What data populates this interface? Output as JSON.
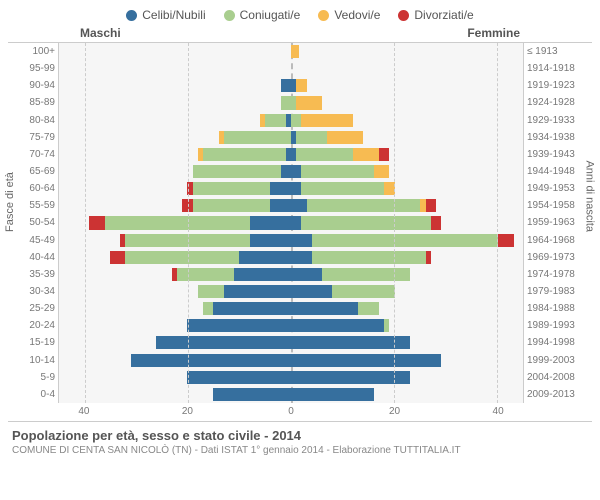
{
  "legend": [
    {
      "label": "Celibi/Nubili",
      "color": "#366f9e"
    },
    {
      "label": "Coniugati/e",
      "color": "#a9ce8f"
    },
    {
      "label": "Vedovi/e",
      "color": "#f7bb52"
    },
    {
      "label": "Divorziati/e",
      "color": "#cc3333"
    }
  ],
  "header": {
    "male": "Maschi",
    "female": "Femmine"
  },
  "axis": {
    "left_title": "Fasce di età",
    "right_title": "Anni di nascita",
    "max": 45,
    "ticks": [
      40,
      20,
      0,
      20,
      40
    ],
    "grid": [
      40,
      20,
      20,
      40
    ]
  },
  "colors": {
    "single": "#366f9e",
    "married": "#a9ce8f",
    "widowed": "#f7bb52",
    "divorced": "#cc3333",
    "plot_bg": "#f6f6f6",
    "grid": "#cccccc"
  },
  "rows": [
    {
      "age": "100+",
      "birth": "≤ 1913",
      "m": [
        0,
        0,
        0,
        0
      ],
      "f": [
        0,
        0,
        1.5,
        0
      ]
    },
    {
      "age": "95-99",
      "birth": "1914-1918",
      "m": [
        0,
        0,
        0,
        0
      ],
      "f": [
        0,
        0,
        0,
        0
      ]
    },
    {
      "age": "90-94",
      "birth": "1919-1923",
      "m": [
        2,
        0,
        0,
        0
      ],
      "f": [
        1,
        0,
        2,
        0
      ]
    },
    {
      "age": "85-89",
      "birth": "1924-1928",
      "m": [
        0,
        2,
        0,
        0
      ],
      "f": [
        0,
        1,
        5,
        0
      ]
    },
    {
      "age": "80-84",
      "birth": "1929-1933",
      "m": [
        1,
        4,
        1,
        0
      ],
      "f": [
        0,
        2,
        10,
        0
      ]
    },
    {
      "age": "75-79",
      "birth": "1934-1938",
      "m": [
        0,
        13,
        1,
        0
      ],
      "f": [
        1,
        6,
        7,
        0
      ]
    },
    {
      "age": "70-74",
      "birth": "1939-1943",
      "m": [
        1,
        16,
        1,
        0
      ],
      "f": [
        1,
        11,
        5,
        2
      ]
    },
    {
      "age": "65-69",
      "birth": "1944-1948",
      "m": [
        2,
        17,
        0,
        0
      ],
      "f": [
        2,
        14,
        3,
        0
      ]
    },
    {
      "age": "60-64",
      "birth": "1949-1953",
      "m": [
        4,
        15,
        0,
        1
      ],
      "f": [
        2,
        16,
        2,
        0
      ]
    },
    {
      "age": "55-59",
      "birth": "1954-1958",
      "m": [
        4,
        15,
        0,
        2
      ],
      "f": [
        3,
        22,
        1,
        2
      ]
    },
    {
      "age": "50-54",
      "birth": "1959-1963",
      "m": [
        8,
        28,
        0,
        3
      ],
      "f": [
        2,
        25,
        0,
        2
      ]
    },
    {
      "age": "45-49",
      "birth": "1964-1968",
      "m": [
        8,
        24,
        0,
        1
      ],
      "f": [
        4,
        36,
        0,
        3
      ]
    },
    {
      "age": "40-44",
      "birth": "1969-1973",
      "m": [
        10,
        22,
        0,
        3
      ],
      "f": [
        4,
        22,
        0,
        1
      ]
    },
    {
      "age": "35-39",
      "birth": "1974-1978",
      "m": [
        11,
        11,
        0,
        1
      ],
      "f": [
        6,
        17,
        0,
        0
      ]
    },
    {
      "age": "30-34",
      "birth": "1979-1983",
      "m": [
        13,
        5,
        0,
        0
      ],
      "f": [
        8,
        12,
        0,
        0
      ]
    },
    {
      "age": "25-29",
      "birth": "1984-1988",
      "m": [
        15,
        2,
        0,
        0
      ],
      "f": [
        13,
        4,
        0,
        0
      ]
    },
    {
      "age": "20-24",
      "birth": "1989-1993",
      "m": [
        20,
        0,
        0,
        0
      ],
      "f": [
        18,
        1,
        0,
        0
      ]
    },
    {
      "age": "15-19",
      "birth": "1994-1998",
      "m": [
        26,
        0,
        0,
        0
      ],
      "f": [
        23,
        0,
        0,
        0
      ]
    },
    {
      "age": "10-14",
      "birth": "1999-2003",
      "m": [
        31,
        0,
        0,
        0
      ],
      "f": [
        29,
        0,
        0,
        0
      ]
    },
    {
      "age": "5-9",
      "birth": "2004-2008",
      "m": [
        20,
        0,
        0,
        0
      ],
      "f": [
        23,
        0,
        0,
        0
      ]
    },
    {
      "age": "0-4",
      "birth": "2009-2013",
      "m": [
        15,
        0,
        0,
        0
      ],
      "f": [
        16,
        0,
        0,
        0
      ]
    }
  ],
  "footer": {
    "title": "Popolazione per età, sesso e stato civile - 2014",
    "subtitle": "COMUNE DI CENTA SAN NICOLÒ (TN) - Dati ISTAT 1° gennaio 2014 - Elaborazione TUTTITALIA.IT"
  }
}
